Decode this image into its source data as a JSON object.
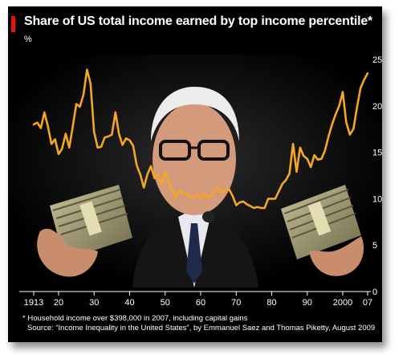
{
  "title": "Share of US total income earned by top income percentile*",
  "unit": "%",
  "footnote": "* Household income over $398,000 in 2007, including capital gains",
  "source": "Source: “Income Inequality in the United States”, by Emmanuel Saez and Thomas Piketty, August 2009",
  "colors": {
    "line": "#f5a623",
    "background": "#000000",
    "accent": "#e3120b",
    "text": "#ffffff"
  },
  "chart_data": {
    "type": "line",
    "title": "Share of US total income earned by top income percentile*",
    "xlabel": "",
    "ylabel": "%",
    "xlim": [
      1913,
      2007
    ],
    "ylim": [
      0,
      25
    ],
    "grid": false,
    "x_ticks": [
      {
        "value": 1913,
        "label": "1913"
      },
      {
        "value": 1920,
        "label": "20"
      },
      {
        "value": 1930,
        "label": "30"
      },
      {
        "value": 1940,
        "label": "40"
      },
      {
        "value": 1950,
        "label": "50"
      },
      {
        "value": 1960,
        "label": "60"
      },
      {
        "value": 1970,
        "label": "70"
      },
      {
        "value": 1980,
        "label": "80"
      },
      {
        "value": 1990,
        "label": "90"
      },
      {
        "value": 2000,
        "label": "2000"
      },
      {
        "value": 2007,
        "label": "07"
      }
    ],
    "y_ticks": [
      {
        "value": 0,
        "label": "0"
      },
      {
        "value": 5,
        "label": "5"
      },
      {
        "value": 10,
        "label": "10"
      },
      {
        "value": 15,
        "label": "15"
      },
      {
        "value": 20,
        "label": "20"
      },
      {
        "value": 25,
        "label": "25"
      }
    ],
    "series": [
      {
        "x": [
          1913,
          1914,
          1915,
          1916,
          1917,
          1918,
          1919,
          1920,
          1921,
          1922,
          1923,
          1924,
          1925,
          1926,
          1927,
          1928,
          1929,
          1930,
          1931,
          1932,
          1933,
          1934,
          1935,
          1936,
          1937,
          1938,
          1939,
          1940,
          1941,
          1942,
          1943,
          1944,
          1945,
          1946,
          1947,
          1948,
          1949,
          1950,
          1951,
          1952,
          1953,
          1954,
          1955,
          1956,
          1957,
          1958,
          1959,
          1960,
          1961,
          1962,
          1963,
          1964,
          1965,
          1966,
          1967,
          1968,
          1969,
          1970,
          1971,
          1972,
          1973,
          1974,
          1975,
          1976,
          1977,
          1978,
          1979,
          1980,
          1981,
          1982,
          1983,
          1984,
          1985,
          1986,
          1987,
          1988,
          1989,
          1990,
          1991,
          1992,
          1993,
          1994,
          1995,
          1996,
          1997,
          1998,
          1999,
          2000,
          2001,
          2002,
          2003,
          2004,
          2005,
          2006,
          2007
        ],
        "values": [
          18.0,
          18.2,
          17.6,
          19.3,
          17.8,
          15.9,
          16.4,
          14.8,
          15.4,
          17.0,
          15.5,
          17.8,
          20.2,
          19.9,
          21.2,
          23.9,
          22.4,
          17.2,
          15.5,
          15.6,
          16.6,
          16.7,
          16.9,
          19.3,
          17.0,
          15.8,
          16.5,
          16.3,
          15.7,
          13.6,
          12.6,
          11.2,
          12.6,
          13.5,
          12.2,
          12.6,
          11.6,
          12.9,
          11.8,
          11.0,
          10.1,
          10.9,
          10.6,
          10.5,
          10.1,
          10.2,
          10.5,
          10.0,
          10.6,
          10.1,
          10.3,
          10.9,
          11.2,
          10.6,
          10.9,
          11.0,
          10.3,
          9.3,
          9.6,
          9.7,
          9.4,
          9.2,
          9.0,
          9.1,
          9.0,
          9.0,
          10.0,
          10.0,
          10.0,
          10.8,
          11.6,
          12.0,
          12.7,
          15.9,
          12.9,
          15.5,
          14.6,
          14.3,
          13.4,
          14.7,
          14.2,
          14.3,
          15.2,
          16.7,
          18.0,
          19.1,
          20.0,
          21.5,
          18.2,
          16.9,
          17.5,
          19.8,
          21.9,
          22.8,
          23.5
        ]
      }
    ]
  }
}
